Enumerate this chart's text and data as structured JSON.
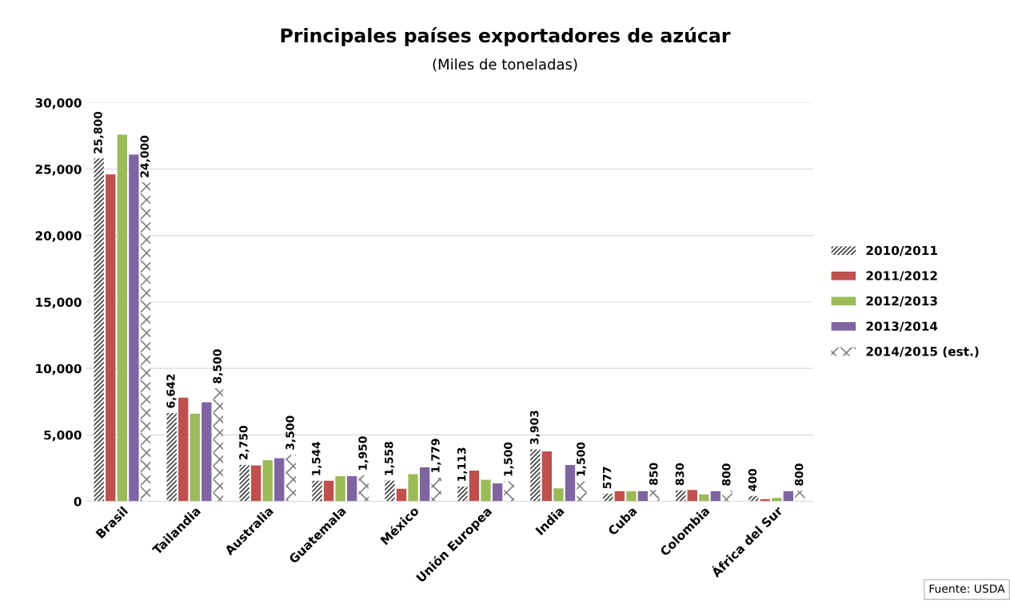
{
  "chart_data": {
    "type": "bar",
    "title": "Principales países exportadores de azúcar",
    "subtitle": "(Miles de toneladas)",
    "categories": [
      "Brasil",
      "Tailandia",
      "Australia",
      "Guatemala",
      "México",
      "Unión Europea",
      "India",
      "Cuba",
      "Colombia",
      "África del Sur"
    ],
    "series": [
      {
        "name": "2010/2011",
        "color": "#404040",
        "values": [
          25800,
          6642,
          2750,
          1544,
          1558,
          1113,
          3903,
          577,
          830,
          400
        ],
        "value_labels": [
          "25,800",
          "6,642",
          "2,750",
          "1,544",
          "1,558",
          "1,113",
          "3,903",
          "577",
          "830",
          "400"
        ]
      },
      {
        "name": "2011/2012",
        "color": "#c0504d",
        "values": [
          24600,
          7800,
          2700,
          1550,
          950,
          2320,
          3760,
          770,
          860,
          160
        ]
      },
      {
        "name": "2012/2013",
        "color": "#9bbb59",
        "values": [
          27600,
          6600,
          3100,
          1900,
          2040,
          1620,
          970,
          770,
          530,
          260
        ]
      },
      {
        "name": "2013/2014",
        "color": "#8064a2",
        "values": [
          26100,
          7450,
          3250,
          1900,
          2550,
          1350,
          2740,
          770,
          770,
          770
        ]
      },
      {
        "name": "2014/2015 (est.)",
        "color": "#808080",
        "values": [
          24000,
          8500,
          3500,
          1950,
          1779,
          1500,
          1500,
          850,
          800,
          800
        ],
        "value_labels": [
          "24,000",
          "8,500",
          "3,500",
          "1,950",
          "1,779",
          "1,500",
          "1,500",
          "850",
          "800",
          "800"
        ]
      }
    ],
    "ylim": [
      0,
      30000
    ],
    "yticks": [
      {
        "value": 0,
        "label": "0"
      },
      {
        "value": 5000,
        "label": "5,000"
      },
      {
        "value": 10000,
        "label": "10,000"
      },
      {
        "value": 15000,
        "label": "15,000"
      },
      {
        "value": 20000,
        "label": "20,000"
      },
      {
        "value": 25000,
        "label": "25,000"
      },
      {
        "value": 30000,
        "label": "30,000"
      }
    ],
    "grid": "y",
    "legend": "right",
    "annotations": [
      "Fuente: USDA"
    ]
  }
}
